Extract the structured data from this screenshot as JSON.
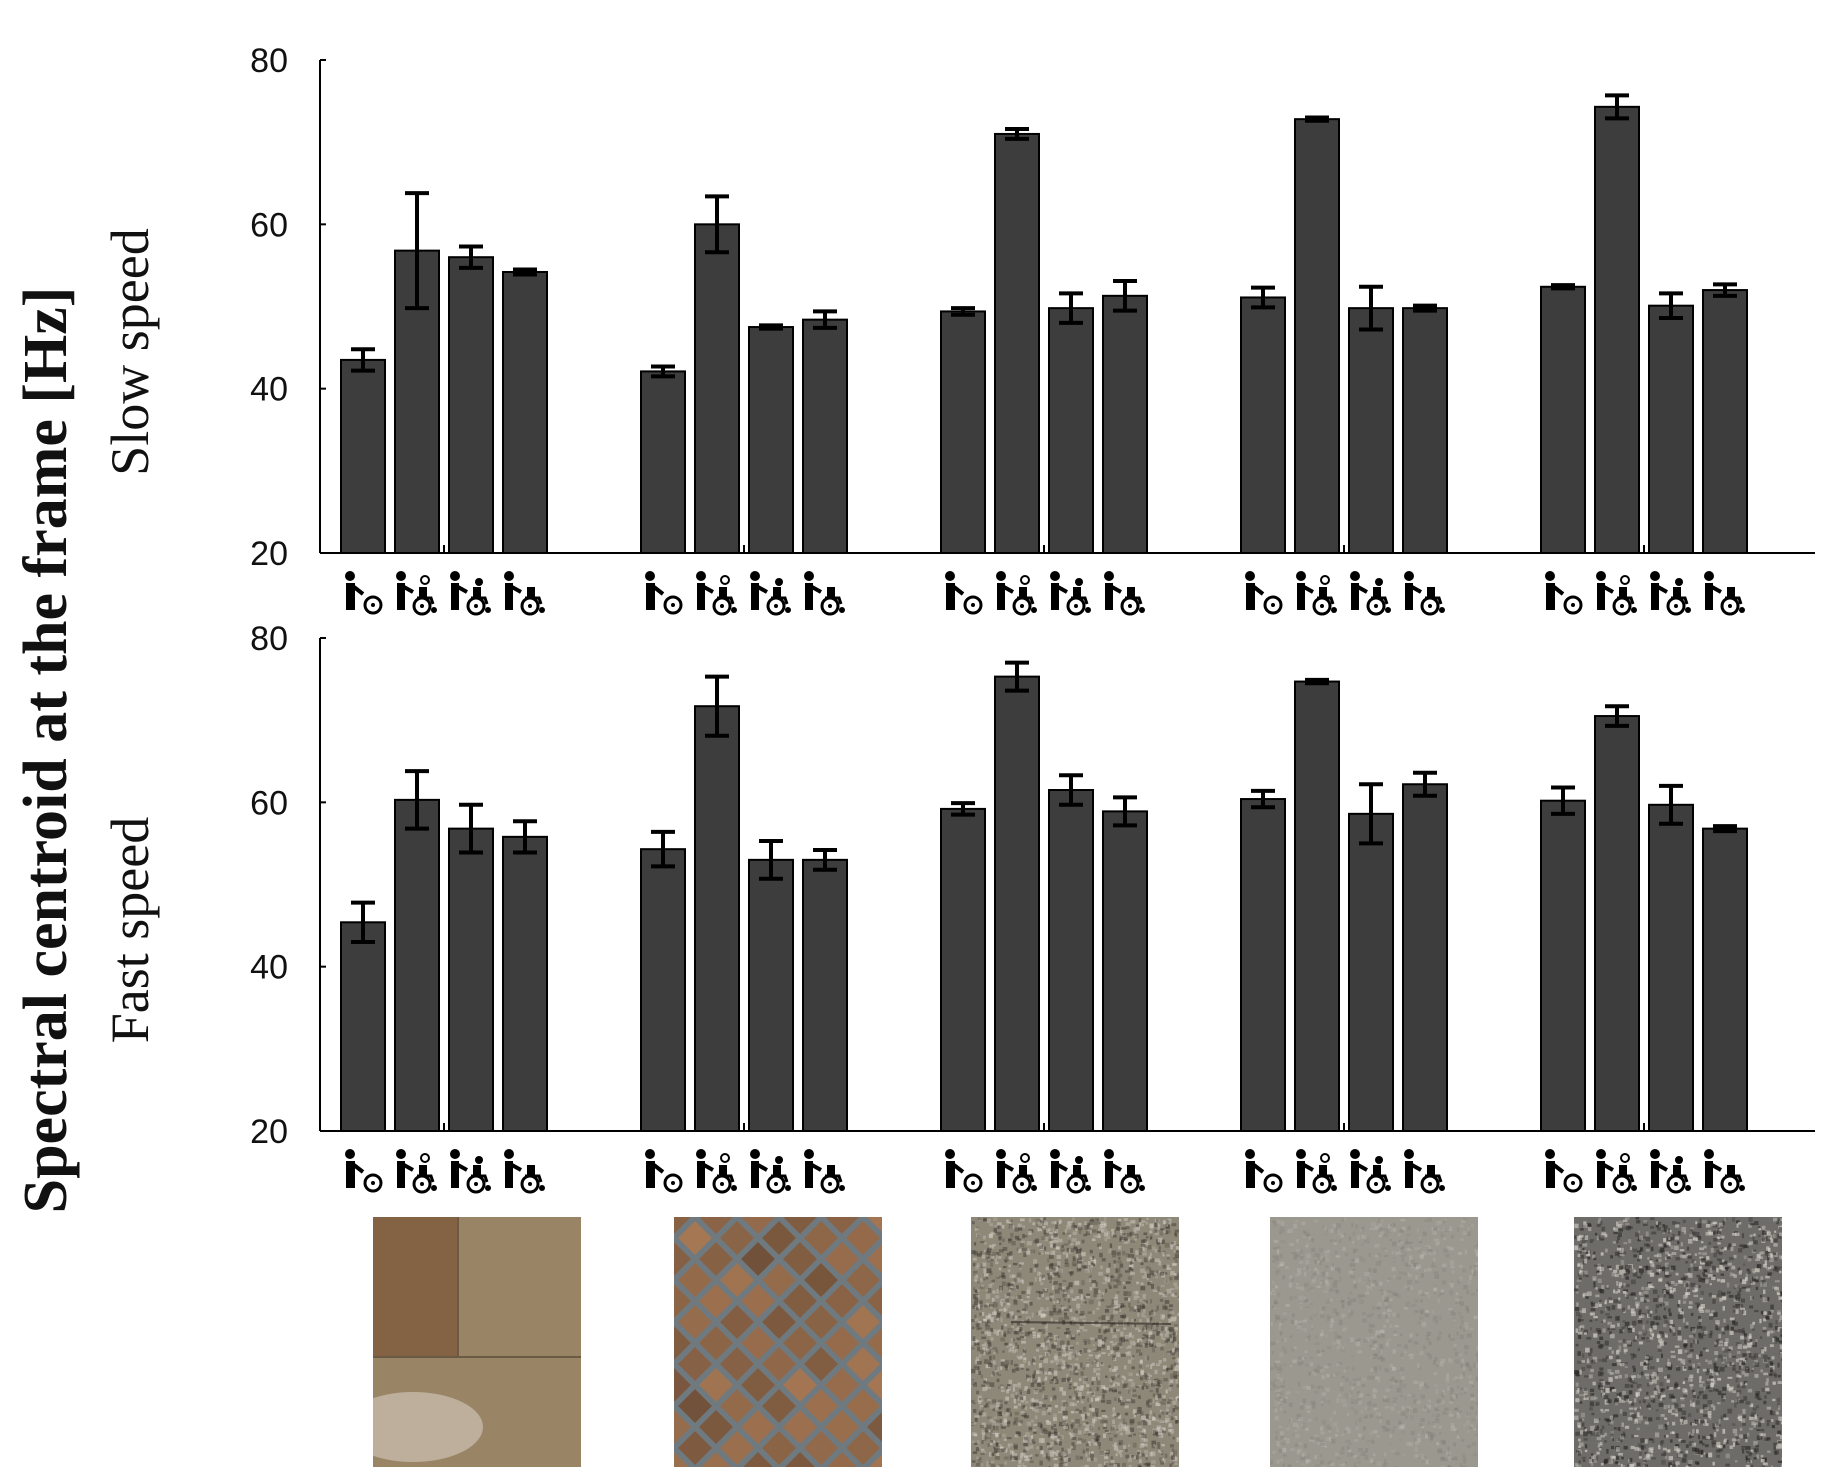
{
  "colors": {
    "bar_fill": "#3d3d3d",
    "bar_stroke": "#000000",
    "axis": "#000000",
    "text": "#111111"
  },
  "labels": {
    "main_ylabel": "Spectral centroid at the frame [Hz]"
  },
  "icons": [
    "walking-aid-user-icon",
    "wheelchair-with-assistant-icon",
    "wheelchair-with-companion-icon",
    "self-propelled-wheelchair-icon"
  ],
  "surface_textures": [
    {
      "name": "smooth-tile-floor-texture",
      "base": "#9a8466",
      "accent": "#6b4a2e",
      "contrast": 0.18
    },
    {
      "name": "diamond-brick-floor-texture",
      "base": "#8c6a4c",
      "accent": "#5a3f2a",
      "contrast": 0.35
    },
    {
      "name": "fine-granite-floor-texture",
      "base": "#8e8878",
      "accent": "#3a3630",
      "contrast": 0.55
    },
    {
      "name": "grey-terrazzo-floor-texture",
      "base": "#9b9890",
      "accent": "#6e6b65",
      "contrast": 0.25
    },
    {
      "name": "coarse-granite-floor-texture",
      "base": "#6e6c68",
      "accent": "#2a2927",
      "contrast": 0.7
    }
  ],
  "chart_data": [
    {
      "type": "bar",
      "title": "",
      "ylabel": "Slow speed",
      "xlabel": "",
      "ylim": [
        20,
        80
      ],
      "yticks": [
        20,
        40,
        60,
        80
      ],
      "groups": [
        "Surface 1",
        "Surface 2",
        "Surface 3",
        "Surface 4",
        "Surface 5"
      ],
      "categories": [
        "Walking aid user",
        "Wheelchair with assistant",
        "Wheelchair with companion",
        "Self-propelled wheelchair"
      ],
      "series": [
        {
          "name": "Surface 1",
          "values": [
            43.5,
            56.8,
            56.0,
            54.2
          ],
          "errors": [
            1.3,
            7.0,
            1.3,
            0.3
          ]
        },
        {
          "name": "Surface 2",
          "values": [
            42.1,
            60.0,
            47.5,
            48.4
          ],
          "errors": [
            0.6,
            3.4,
            0.2,
            1.0
          ]
        },
        {
          "name": "Surface 3",
          "values": [
            49.4,
            71.0,
            49.8,
            51.3
          ],
          "errors": [
            0.4,
            0.6,
            1.8,
            1.8
          ]
        },
        {
          "name": "Surface 4",
          "values": [
            51.1,
            72.8,
            49.8,
            49.8
          ],
          "errors": [
            1.2,
            0.2,
            2.6,
            0.3
          ]
        },
        {
          "name": "Surface 5",
          "values": [
            52.4,
            74.3,
            50.1,
            52.0
          ],
          "errors": [
            0.2,
            1.4,
            1.5,
            0.7
          ]
        }
      ]
    },
    {
      "type": "bar",
      "title": "",
      "ylabel": "Fast speed",
      "xlabel": "",
      "ylim": [
        20,
        80
      ],
      "yticks": [
        20,
        40,
        60,
        80
      ],
      "groups": [
        "Surface 1",
        "Surface 2",
        "Surface 3",
        "Surface 4",
        "Surface 5"
      ],
      "categories": [
        "Walking aid user",
        "Wheelchair with assistant",
        "Wheelchair with companion",
        "Self-propelled wheelchair"
      ],
      "series": [
        {
          "name": "Surface 1",
          "values": [
            45.4,
            60.3,
            56.8,
            55.8
          ],
          "errors": [
            2.4,
            3.5,
            2.9,
            1.9
          ]
        },
        {
          "name": "Surface 2",
          "values": [
            54.3,
            71.7,
            53.0,
            53.0
          ],
          "errors": [
            2.1,
            3.6,
            2.3,
            1.2
          ]
        },
        {
          "name": "Surface 3",
          "values": [
            59.2,
            75.3,
            61.5,
            58.9
          ],
          "errors": [
            0.7,
            1.7,
            1.8,
            1.7
          ]
        },
        {
          "name": "Surface 4",
          "values": [
            60.4,
            74.7,
            58.6,
            62.2
          ],
          "errors": [
            1.0,
            0.2,
            3.6,
            1.4
          ]
        },
        {
          "name": "Surface 5",
          "values": [
            60.2,
            70.5,
            59.7,
            56.8
          ],
          "errors": [
            1.6,
            1.2,
            2.3,
            0.3
          ]
        }
      ]
    }
  ]
}
